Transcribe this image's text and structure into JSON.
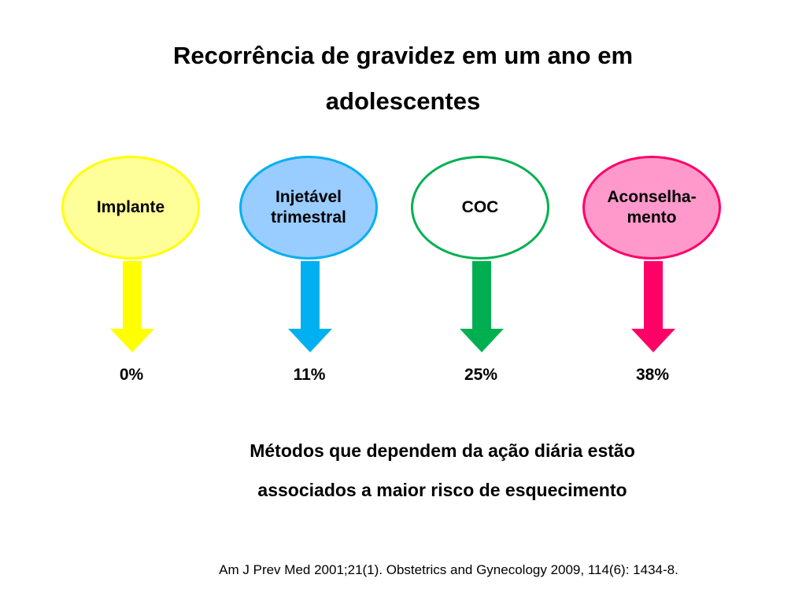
{
  "title": {
    "line1": "Recorrência de gravidez em um ano em",
    "line2": "adolescentes"
  },
  "methods": [
    {
      "label": "Implante",
      "percent": "0%",
      "value": 0,
      "bubble_fill": "#FFFF99",
      "bubble_border": "#FFFF00",
      "arrow_color": "#FFFF00"
    },
    {
      "label": "Injetável\ntrimestral",
      "percent": "11%",
      "value": 11,
      "bubble_fill": "#99CCFF",
      "bubble_border": "#00B0F0",
      "arrow_color": "#00B0F0"
    },
    {
      "label": "COC",
      "percent": "25%",
      "value": 25,
      "bubble_fill": "#FFFFFF",
      "bubble_border": "#00B050",
      "arrow_color": "#00B050"
    },
    {
      "label": "Aconselha-\nmento",
      "percent": "38%",
      "value": 38,
      "bubble_fill": "#FF99CC",
      "bubble_border": "#FF0066",
      "arrow_color": "#FF0066"
    }
  ],
  "conclusion": {
    "line1": "Métodos que dependem da ação diária estão",
    "line2": "associados a maior  risco de esquecimento"
  },
  "reference": "Am J Prev Med 2001;21(1). Obstetrics and Gynecology 2009, 114(6): 1434-8."
}
